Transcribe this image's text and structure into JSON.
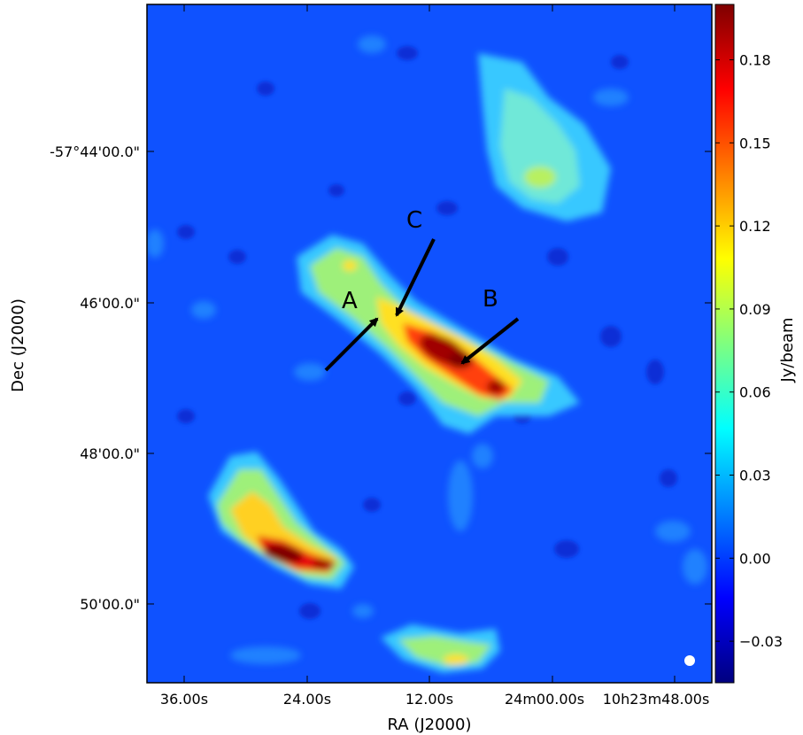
{
  "chart_data": {
    "type": "heatmap",
    "title": "",
    "xlabel": "RA (J2000)",
    "ylabel": "Dec (J2000)",
    "colorbar_label": "Jy/beam",
    "colormap": "jet",
    "colorbar_range": [
      -0.045,
      0.2
    ],
    "x_ticks": [
      "36.00s",
      "24.00s",
      "12.00s",
      "24m00.00s",
      "10h23m48.00s"
    ],
    "y_ticks": [
      "-57°44'00.0\"",
      "46'00.0\"",
      "48'00.0\"",
      "50'00.0\""
    ],
    "colorbar_ticks": [
      {
        "value": 0.18,
        "label": "0.18"
      },
      {
        "value": 0.15,
        "label": "0.15"
      },
      {
        "value": 0.12,
        "label": "0.12"
      },
      {
        "value": 0.09,
        "label": "0.09"
      },
      {
        "value": 0.06,
        "label": "0.06"
      },
      {
        "value": 0.03,
        "label": "0.03"
      },
      {
        "value": 0.0,
        "label": "0.00"
      },
      {
        "value": -0.03,
        "label": "−0.03"
      }
    ],
    "annotations": [
      {
        "label": "A"
      },
      {
        "label": "B"
      },
      {
        "label": "C"
      }
    ],
    "grid": false,
    "beam_marker": "white-dot"
  }
}
